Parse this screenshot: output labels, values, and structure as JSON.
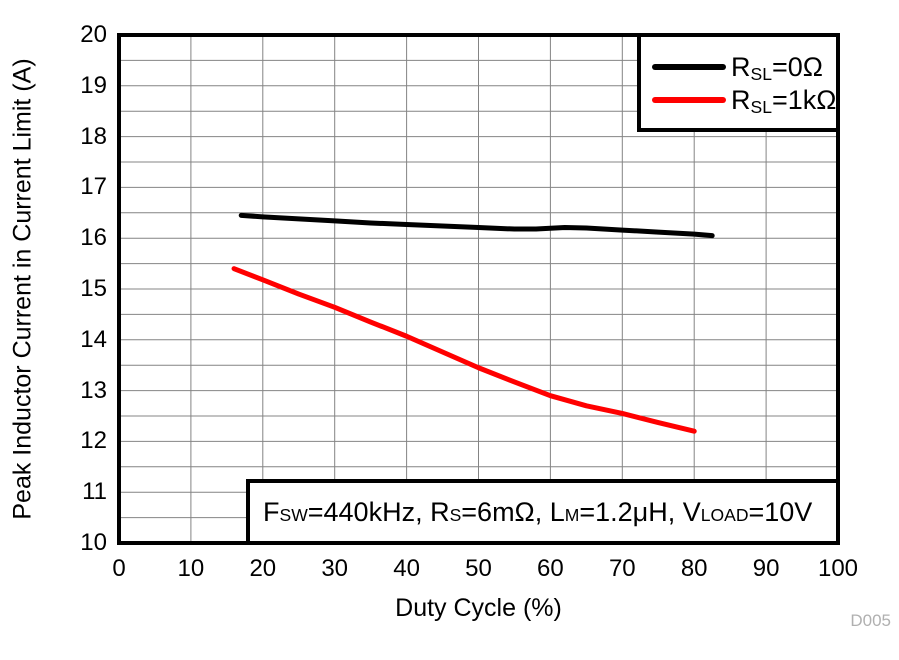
{
  "figure_id": "D005",
  "colors": {
    "background": "#ffffff",
    "grid": "#848484",
    "axis_border": "#000000",
    "figure_id_text": "#b0b0b0",
    "series_black": "#000000",
    "series_red": "#ff0000"
  },
  "chart_data": {
    "type": "line",
    "title": "",
    "xlabel": "Duty Cycle (%)",
    "ylabel": "Peak Inductor Current in Current Limit (A)",
    "xlim": [
      0,
      100
    ],
    "ylim": [
      10,
      20
    ],
    "x_ticks": [
      0,
      10,
      20,
      30,
      40,
      50,
      60,
      70,
      80,
      90,
      100
    ],
    "y_ticks": [
      10,
      11,
      12,
      13,
      14,
      15,
      16,
      17,
      18,
      19,
      20
    ],
    "x_grid_step": 10,
    "y_grid_step": 0.5,
    "grid": true,
    "legend_position": "top-right",
    "series": [
      {
        "name": "RSL=0Ω",
        "label_segments": [
          {
            "t": "R"
          },
          {
            "t": "SL",
            "sub": true
          },
          {
            "t": "=0Ω"
          }
        ],
        "color": "#000000",
        "points": [
          [
            17,
            16.45
          ],
          [
            20,
            16.42
          ],
          [
            25,
            16.38
          ],
          [
            30,
            16.34
          ],
          [
            35,
            16.3
          ],
          [
            40,
            16.27
          ],
          [
            45,
            16.24
          ],
          [
            50,
            16.21
          ],
          [
            55,
            16.18
          ],
          [
            58,
            16.18
          ],
          [
            62,
            16.21
          ],
          [
            65,
            16.2
          ],
          [
            70,
            16.16
          ],
          [
            75,
            16.12
          ],
          [
            80,
            16.08
          ],
          [
            82.5,
            16.05
          ]
        ]
      },
      {
        "name": "RSL=1kΩ",
        "label_segments": [
          {
            "t": "R"
          },
          {
            "t": "SL",
            "sub": true
          },
          {
            "t": "=1kΩ"
          }
        ],
        "color": "#ff0000",
        "points": [
          [
            16,
            15.4
          ],
          [
            20,
            15.18
          ],
          [
            25,
            14.9
          ],
          [
            30,
            14.64
          ],
          [
            35,
            14.35
          ],
          [
            40,
            14.07
          ],
          [
            45,
            13.76
          ],
          [
            50,
            13.45
          ],
          [
            55,
            13.17
          ],
          [
            60,
            12.9
          ],
          [
            65,
            12.7
          ],
          [
            70,
            12.55
          ],
          [
            75,
            12.37
          ],
          [
            80,
            12.2
          ]
        ]
      }
    ],
    "annotation": {
      "text": "FSW=440kHz, RS=6mΩ, LM=1.2μH, VLOAD=10V",
      "segments": [
        {
          "t": "F"
        },
        {
          "t": "SW",
          "sub": true
        },
        {
          "t": "=440kHz, R"
        },
        {
          "t": "S",
          "sub": true
        },
        {
          "t": "=6mΩ, L"
        },
        {
          "t": "M",
          "sub": true
        },
        {
          "t": "=1.2μH, V"
        },
        {
          "t": "LOAD",
          "sub": true
        },
        {
          "t": "=10V"
        }
      ]
    }
  }
}
